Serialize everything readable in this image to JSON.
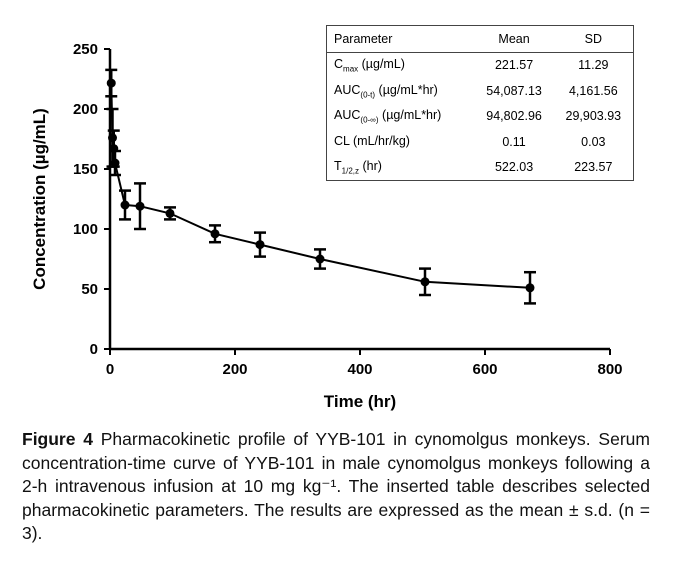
{
  "chart_data": {
    "type": "line",
    "xlabel": "Time (hr)",
    "ylabel": "Concentration (µg/mL)",
    "xlim": [
      0,
      800
    ],
    "ylim": [
      0,
      250
    ],
    "xticks": [
      "0",
      "200",
      "400",
      "600",
      "800"
    ],
    "yticks": [
      "0",
      "50",
      "100",
      "150",
      "200",
      "250"
    ],
    "grid": false,
    "series": [
      {
        "x": [
          2,
          4,
          6,
          8,
          24,
          48,
          96,
          168,
          240,
          336,
          504,
          672
        ],
        "y": [
          221.6,
          176,
          167,
          155,
          120,
          119,
          113,
          96,
          87,
          75,
          56,
          51
        ],
        "sd": [
          11,
          24,
          15,
          10,
          12,
          19,
          5,
          7,
          10,
          8,
          11,
          13
        ]
      }
    ],
    "color": "#000000"
  },
  "table": {
    "headers": [
      "Parameter",
      "Mean",
      "SD"
    ],
    "rows": [
      {
        "name": "C",
        "sub": "max",
        "unit": " (µg/mL)",
        "mean": "221.57",
        "sd": "11.29"
      },
      {
        "name": "AUC",
        "sub": "(0-t)",
        "unit": " (µg/mL*hr)",
        "mean": "54,087.13",
        "sd": "4,161.56"
      },
      {
        "name": "AUC",
        "sub": "(0-∞)",
        "unit": " (µg/mL*hr)",
        "mean": "94,802.96",
        "sd": "29,903.93"
      },
      {
        "name": "CL (mL/hr/kg)",
        "sub": "",
        "unit": "",
        "mean": "0.11",
        "sd": "0.03"
      },
      {
        "name": "T",
        "sub": "1/2,z",
        "unit": " (hr)",
        "mean": "522.03",
        "sd": "223.57"
      }
    ]
  },
  "caption": {
    "label": "Figure 4",
    "text": " Pharmacokinetic profile of YYB-101 in cynomolgus monkeys. Serum concentration-time curve of YYB-101 in male cynomolgus monkeys following a 2-h intravenous infusion at 10 mg kg⁻¹. The inserted table describes selected pharmacokinetic parameters. The results are expressed as the mean ± s.d. (n = 3)."
  }
}
